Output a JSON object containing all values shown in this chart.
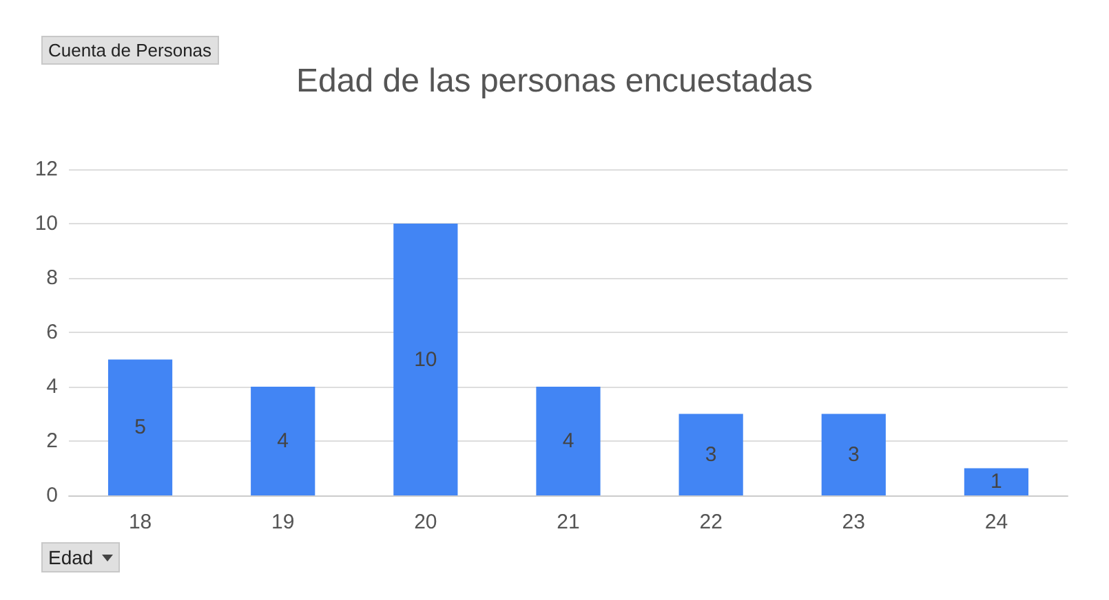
{
  "chart_data": {
    "type": "bar",
    "title": "Edad de las personas encuestadas",
    "annotations": [
      "Cuenta de Personas"
    ],
    "xlabel": "Edad",
    "categories": [
      "18",
      "19",
      "20",
      "21",
      "22",
      "23",
      "24"
    ],
    "values": [
      5,
      4,
      10,
      4,
      3,
      3,
      1
    ],
    "color": "#4285f4",
    "ylim": [
      0,
      12
    ],
    "yticks": [
      0,
      2,
      4,
      6,
      8,
      10,
      12
    ],
    "grid": "y",
    "data_labels": true
  }
}
